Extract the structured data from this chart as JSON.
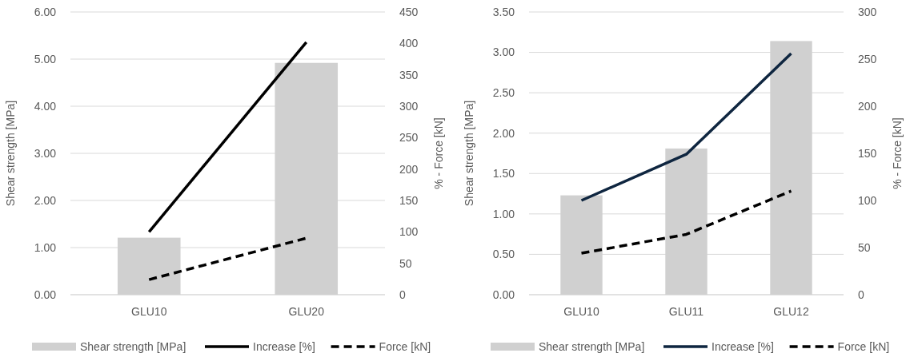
{
  "chart_data": [
    {
      "type": "bar",
      "categories": [
        "GLU10",
        "GLU20"
      ],
      "ylabel": "Shear strength [MPa]",
      "y2label": "% - Force [kN]",
      "ylim": [
        0,
        6
      ],
      "yticks": [
        {
          "value": 0,
          "label": "0.00"
        },
        {
          "value": 1,
          "label": "1.00"
        },
        {
          "value": 2,
          "label": "2.00"
        },
        {
          "value": 3,
          "label": "3.00"
        },
        {
          "value": 4,
          "label": "4.00"
        },
        {
          "value": 5,
          "label": "5.00"
        },
        {
          "value": 6,
          "label": "6.00"
        }
      ],
      "y2lim": [
        0,
        450
      ],
      "y2ticks": [
        0,
        50,
        100,
        150,
        200,
        250,
        300,
        350,
        400,
        450
      ],
      "grid": "y",
      "legend": "bottom",
      "series": [
        {
          "name": "Shear strength [MPa]",
          "color": "#d0d0d0",
          "values": [
            1.21,
            4.92
          ]
        },
        {
          "name": "Increase [%]",
          "type": "line",
          "axis": "y2",
          "line_style": "solid",
          "color": "#000000",
          "values": [
            100,
            402
          ]
        },
        {
          "name": "Force [kN]",
          "type": "line",
          "axis": "y2",
          "line_style": "dashed",
          "color": "#000000",
          "values": [
            24,
            90
          ]
        }
      ]
    },
    {
      "type": "bar",
      "categories": [
        "GLU10",
        "GLU11",
        "GLU12"
      ],
      "ylabel": "Shear strength [MPa]",
      "y2label": "% - Force [kN]",
      "ylim": [
        0,
        3.5
      ],
      "yticks": [
        {
          "value": 0,
          "label": "0.00"
        },
        {
          "value": 0.5,
          "label": "0.50"
        },
        {
          "value": 1,
          "label": "1.00"
        },
        {
          "value": 1.5,
          "label": "1.50"
        },
        {
          "value": 2,
          "label": "2.00"
        },
        {
          "value": 2.5,
          "label": "2.50"
        },
        {
          "value": 3,
          "label": "3.00"
        },
        {
          "value": 3.5,
          "label": "3.50"
        }
      ],
      "y2lim": [
        0,
        300
      ],
      "y2ticks": [
        0,
        50,
        100,
        150,
        200,
        250,
        300
      ],
      "grid": "y",
      "legend": "bottom",
      "series": [
        {
          "name": "Shear strength [MPa]",
          "color": "#d0d0d0",
          "values": [
            1.23,
            1.81,
            3.14
          ]
        },
        {
          "name": "Increase [%]",
          "type": "line",
          "axis": "y2",
          "line_style": "solid",
          "color": "#0f2640",
          "values": [
            100,
            149,
            256
          ]
        },
        {
          "name": "Force [kN]",
          "type": "line",
          "axis": "y2",
          "line_style": "dashed",
          "color": "#000000",
          "values": [
            44,
            64,
            110
          ]
        }
      ]
    }
  ]
}
